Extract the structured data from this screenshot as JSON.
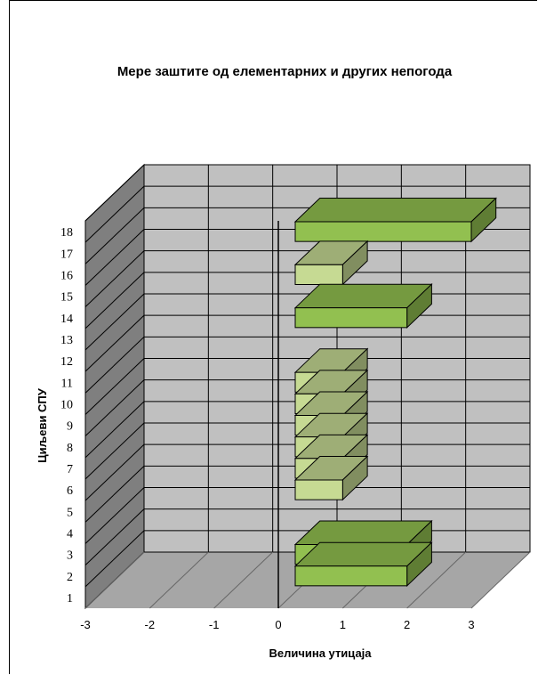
{
  "chart_data": {
    "type": "bar",
    "orientation": "horizontal-3d",
    "title": "Мере заштите од елементарних и других непогода",
    "xlabel": "Величина утицаја",
    "ylabel": "Циљеви СПУ",
    "xlim": [
      -3,
      3
    ],
    "x_ticks": [
      "-3",
      "-2",
      "-1",
      "0",
      "1",
      "2",
      "3"
    ],
    "categories": [
      "1",
      "2",
      "3",
      "4",
      "5",
      "6",
      "7",
      "8",
      "9",
      "10",
      "11",
      "12",
      "13",
      "14",
      "15",
      "16",
      "17",
      "18"
    ],
    "values": [
      0,
      2,
      2,
      0,
      0,
      1,
      1,
      1,
      1,
      1,
      1,
      0,
      0,
      2,
      0,
      1,
      0,
      3
    ],
    "grid": true,
    "colors": {
      "value_1": "#c6da93",
      "value_2": "#92c050",
      "value_3": "#92c050",
      "wall": "#c0c0c0",
      "floor": "#a6a6a6",
      "side_wall": "#7f7f7f"
    }
  }
}
